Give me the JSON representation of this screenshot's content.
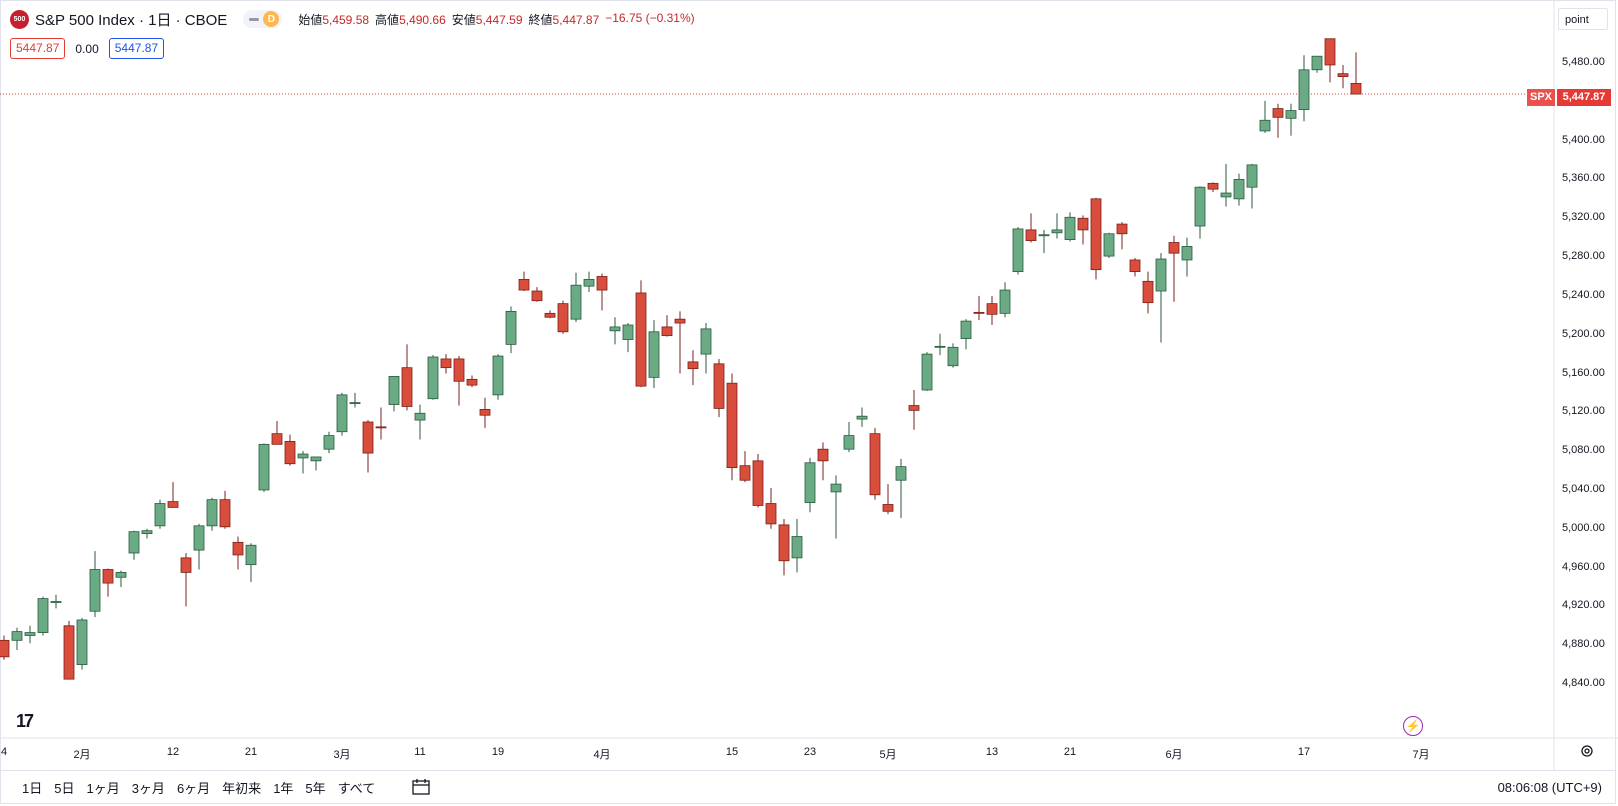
{
  "header": {
    "symbol_logo": "500",
    "symbol_title": "S&P 500 Index · 1日 · CBOE",
    "interval_badge": "D",
    "ohlc": [
      {
        "key": "始値",
        "value": "5,459.58"
      },
      {
        "key": "高値",
        "value": "5,490.66"
      },
      {
        "key": "安値",
        "value": "5,447.59"
      },
      {
        "key": "終値",
        "value": "5,447.87"
      },
      {
        "key": "",
        "value": "−16.75 (−0.31%)"
      }
    ],
    "bid": "5447.87",
    "spread": "0.00",
    "ask": "5447.87"
  },
  "scale_mode": "point",
  "last_price": {
    "symbol": "SPX",
    "value": "5,447.87"
  },
  "footer": {
    "ranges": [
      "1日",
      "5日",
      "1ヶ月",
      "3ヶ月",
      "6ヶ月",
      "年初来",
      "1年",
      "5年",
      "すべて"
    ],
    "clock": "08:06:08 (UTC+9)"
  },
  "icons": {
    "calendar": "calendar-icon",
    "settings": "gear-icon",
    "alert": "lightning-icon",
    "brand": "tradingview-logo"
  },
  "colors": {
    "up": "#6aaa84",
    "down": "#d94d3c",
    "up_border": "#2b5a3d",
    "down_border": "#7a2018",
    "price_line": "#e53935"
  },
  "chart_data": {
    "type": "candlestick",
    "title": "S&P 500 Index · 1日 · CBOE",
    "y_axis": {
      "range": [
        4820,
        5520
      ],
      "ticks": [
        "4,840.00",
        "4,880.00",
        "4,920.00",
        "4,960.00",
        "5,000.00",
        "5,040.00",
        "5,080.00",
        "5,120.00",
        "5,160.00",
        "5,200.00",
        "5,240.00",
        "5,280.00",
        "5,320.00",
        "5,360.00",
        "5,400.00",
        "5,440.00",
        "5,480.00"
      ]
    },
    "x_axis": {
      "ticks": [
        {
          "label": "4",
          "index": 0
        },
        {
          "label": "2月",
          "index": 6
        },
        {
          "label": "12",
          "index": 13
        },
        {
          "label": "21",
          "index": 19
        },
        {
          "label": "3月",
          "index": 26
        },
        {
          "label": "11",
          "index": 32
        },
        {
          "label": "19",
          "index": 38
        },
        {
          "label": "4月",
          "index": 46
        },
        {
          "label": "15",
          "index": 56
        },
        {
          "label": "23",
          "index": 62
        },
        {
          "label": "5月",
          "index": 68
        },
        {
          "label": "13",
          "index": 76
        },
        {
          "label": "21",
          "index": 82
        },
        {
          "label": "6月",
          "index": 90
        },
        {
          "label": "17",
          "index": 100
        },
        {
          "label": "7月",
          "index": 109
        }
      ]
    },
    "candles": [
      {
        "o": 4885,
        "h": 4890,
        "l": 4865,
        "c": 4868
      },
      {
        "o": 4885,
        "h": 4898,
        "l": 4875,
        "c": 4894
      },
      {
        "o": 4890,
        "h": 4900,
        "l": 4882,
        "c": 4893
      },
      {
        "o": 4893,
        "h": 4930,
        "l": 4890,
        "c": 4928
      },
      {
        "o": 4925,
        "h": 4932,
        "l": 4918,
        "c": 4925
      },
      {
        "o": 4900,
        "h": 4905,
        "l": 4845,
        "c": 4845
      },
      {
        "o": 4860,
        "h": 4908,
        "l": 4855,
        "c": 4906
      },
      {
        "o": 4915,
        "h": 4977,
        "l": 4909,
        "c": 4958
      },
      {
        "o": 4958,
        "h": 4959,
        "l": 4930,
        "c": 4944
      },
      {
        "o": 4950,
        "h": 4957,
        "l": 4940,
        "c": 4955
      },
      {
        "o": 4975,
        "h": 4998,
        "l": 4968,
        "c": 4997
      },
      {
        "o": 4995,
        "h": 5000,
        "l": 4990,
        "c": 4998
      },
      {
        "o": 5003,
        "h": 5030,
        "l": 5000,
        "c": 5026
      },
      {
        "o": 5028,
        "h": 5048,
        "l": 5022,
        "c": 5022
      },
      {
        "o": 4970,
        "h": 4975,
        "l": 4920,
        "c": 4955
      },
      {
        "o": 4978,
        "h": 5005,
        "l": 4958,
        "c": 5003
      },
      {
        "o": 5003,
        "h": 5032,
        "l": 4998,
        "c": 5030
      },
      {
        "o": 5030,
        "h": 5039,
        "l": 5000,
        "c": 5002
      },
      {
        "o": 4986,
        "h": 4992,
        "l": 4958,
        "c": 4973
      },
      {
        "o": 4963,
        "h": 4985,
        "l": 4945,
        "c": 4983
      },
      {
        "o": 5040,
        "h": 5088,
        "l": 5038,
        "c": 5087
      },
      {
        "o": 5098,
        "h": 5111,
        "l": 5088,
        "c": 5087
      },
      {
        "o": 5090,
        "h": 5097,
        "l": 5065,
        "c": 5067
      },
      {
        "o": 5073,
        "h": 5080,
        "l": 5057,
        "c": 5077
      },
      {
        "o": 5070,
        "h": 5074,
        "l": 5060,
        "c": 5074
      },
      {
        "o": 5082,
        "h": 5100,
        "l": 5078,
        "c": 5096
      },
      {
        "o": 5100,
        "h": 5140,
        "l": 5096,
        "c": 5138
      },
      {
        "o": 5130,
        "h": 5140,
        "l": 5125,
        "c": 5130
      },
      {
        "o": 5110,
        "h": 5112,
        "l": 5058,
        "c": 5078
      },
      {
        "o": 5105,
        "h": 5125,
        "l": 5092,
        "c": 5104
      },
      {
        "o": 5128,
        "h": 5155,
        "l": 5121,
        "c": 5157
      },
      {
        "o": 5166,
        "h": 5190,
        "l": 5122,
        "c": 5126
      },
      {
        "o": 5112,
        "h": 5128,
        "l": 5092,
        "c": 5119
      },
      {
        "o": 5134,
        "h": 5179,
        "l": 5133,
        "c": 5177
      },
      {
        "o": 5175,
        "h": 5180,
        "l": 5160,
        "c": 5166
      },
      {
        "o": 5175,
        "h": 5178,
        "l": 5127,
        "c": 5152
      },
      {
        "o": 5154,
        "h": 5158,
        "l": 5146,
        "c": 5148
      },
      {
        "o": 5123,
        "h": 5135,
        "l": 5104,
        "c": 5117
      },
      {
        "o": 5138,
        "h": 5180,
        "l": 5133,
        "c": 5178
      },
      {
        "o": 5190,
        "h": 5229,
        "l": 5181,
        "c": 5224
      },
      {
        "o": 5257,
        "h": 5265,
        "l": 5245,
        "c": 5246
      },
      {
        "o": 5245,
        "h": 5249,
        "l": 5234,
        "c": 5235
      },
      {
        "o": 5222,
        "h": 5225,
        "l": 5217,
        "c": 5218
      },
      {
        "o": 5232,
        "h": 5235,
        "l": 5201,
        "c": 5203
      },
      {
        "o": 5216,
        "h": 5264,
        "l": 5213,
        "c": 5251
      },
      {
        "o": 5250,
        "h": 5265,
        "l": 5244,
        "c": 5257
      },
      {
        "o": 5260,
        "h": 5263,
        "l": 5225,
        "c": 5246
      },
      {
        "o": 5204,
        "h": 5218,
        "l": 5190,
        "c": 5208
      },
      {
        "o": 5195,
        "h": 5212,
        "l": 5182,
        "c": 5210
      },
      {
        "o": 5243,
        "h": 5256,
        "l": 5146,
        "c": 5147
      },
      {
        "o": 5156,
        "h": 5215,
        "l": 5145,
        "c": 5203
      },
      {
        "o": 5208,
        "h": 5220,
        "l": 5198,
        "c": 5199
      },
      {
        "o": 5216,
        "h": 5224,
        "l": 5160,
        "c": 5212
      },
      {
        "o": 5172,
        "h": 5184,
        "l": 5148,
        "c": 5165
      },
      {
        "o": 5180,
        "h": 5212,
        "l": 5160,
        "c": 5206
      },
      {
        "o": 5170,
        "h": 5175,
        "l": 5115,
        "c": 5124
      },
      {
        "o": 5150,
        "h": 5160,
        "l": 5050,
        "c": 5063
      },
      {
        "o": 5065,
        "h": 5080,
        "l": 5048,
        "c": 5050
      },
      {
        "o": 5070,
        "h": 5077,
        "l": 5022,
        "c": 5024
      },
      {
        "o": 5026,
        "h": 5042,
        "l": 5000,
        "c": 5005
      },
      {
        "o": 5004,
        "h": 5010,
        "l": 4952,
        "c": 4967
      },
      {
        "o": 4970,
        "h": 5010,
        "l": 4955,
        "c": 4992
      },
      {
        "o": 5027,
        "h": 5073,
        "l": 5017,
        "c": 5068
      },
      {
        "o": 5082,
        "h": 5089,
        "l": 5050,
        "c": 5070
      },
      {
        "o": 5038,
        "h": 5055,
        "l": 4990,
        "c": 5046
      },
      {
        "o": 5082,
        "h": 5110,
        "l": 5079,
        "c": 5096
      },
      {
        "o": 5113,
        "h": 5125,
        "l": 5105,
        "c": 5116
      },
      {
        "o": 5098,
        "h": 5104,
        "l": 5030,
        "c": 5035
      },
      {
        "o": 5025,
        "h": 5046,
        "l": 5015,
        "c": 5018
      },
      {
        "o": 5050,
        "h": 5072,
        "l": 5011,
        "c": 5064
      },
      {
        "o": 5127,
        "h": 5143,
        "l": 5102,
        "c": 5122
      },
      {
        "o": 5143,
        "h": 5182,
        "l": 5142,
        "c": 5180
      },
      {
        "o": 5188,
        "h": 5201,
        "l": 5179,
        "c": 5188
      },
      {
        "o": 5168,
        "h": 5191,
        "l": 5166,
        "c": 5187
      },
      {
        "o": 5196,
        "h": 5216,
        "l": 5185,
        "c": 5214
      },
      {
        "o": 5223,
        "h": 5240,
        "l": 5215,
        "c": 5222
      },
      {
        "o": 5232,
        "h": 5240,
        "l": 5210,
        "c": 5221
      },
      {
        "o": 5222,
        "h": 5254,
        "l": 5218,
        "c": 5246
      },
      {
        "o": 5265,
        "h": 5311,
        "l": 5262,
        "c": 5309
      },
      {
        "o": 5308,
        "h": 5325,
        "l": 5295,
        "c": 5297
      },
      {
        "o": 5302,
        "h": 5308,
        "l": 5284,
        "c": 5303
      },
      {
        "o": 5305,
        "h": 5325,
        "l": 5299,
        "c": 5308
      },
      {
        "o": 5298,
        "h": 5326,
        "l": 5296,
        "c": 5321
      },
      {
        "o": 5320,
        "h": 5323,
        "l": 5293,
        "c": 5308
      },
      {
        "o": 5340,
        "h": 5341,
        "l": 5257,
        "c": 5267
      },
      {
        "o": 5281,
        "h": 5305,
        "l": 5279,
        "c": 5304
      },
      {
        "o": 5314,
        "h": 5316,
        "l": 5288,
        "c": 5304
      },
      {
        "o": 5277,
        "h": 5279,
        "l": 5260,
        "c": 5265
      },
      {
        "o": 5255,
        "h": 5265,
        "l": 5222,
        "c": 5233
      },
      {
        "o": 5245,
        "h": 5284,
        "l": 5192,
        "c": 5278
      },
      {
        "o": 5295,
        "h": 5302,
        "l": 5234,
        "c": 5284
      },
      {
        "o": 5277,
        "h": 5300,
        "l": 5260,
        "c": 5291
      },
      {
        "o": 5312,
        "h": 5353,
        "l": 5299,
        "c": 5352
      },
      {
        "o": 5356,
        "h": 5357,
        "l": 5347,
        "c": 5350
      },
      {
        "o": 5342,
        "h": 5376,
        "l": 5332,
        "c": 5346
      },
      {
        "o": 5340,
        "h": 5366,
        "l": 5333,
        "c": 5360
      },
      {
        "o": 5352,
        "h": 5376,
        "l": 5330,
        "c": 5375
      },
      {
        "o": 5410,
        "h": 5441,
        "l": 5408,
        "c": 5421
      },
      {
        "o": 5433,
        "h": 5438,
        "l": 5403,
        "c": 5424
      },
      {
        "o": 5423,
        "h": 5438,
        "l": 5405,
        "c": 5431
      },
      {
        "o": 5432,
        "h": 5488,
        "l": 5420,
        "c": 5473
      },
      {
        "o": 5473,
        "h": 5486,
        "l": 5470,
        "c": 5487
      },
      {
        "o": 5505,
        "h": 5505,
        "l": 5460,
        "c": 5478
      },
      {
        "o": 5469,
        "h": 5478,
        "l": 5454,
        "c": 5466
      },
      {
        "o": 5459,
        "h": 5491,
        "l": 5448,
        "c": 5448
      }
    ]
  }
}
